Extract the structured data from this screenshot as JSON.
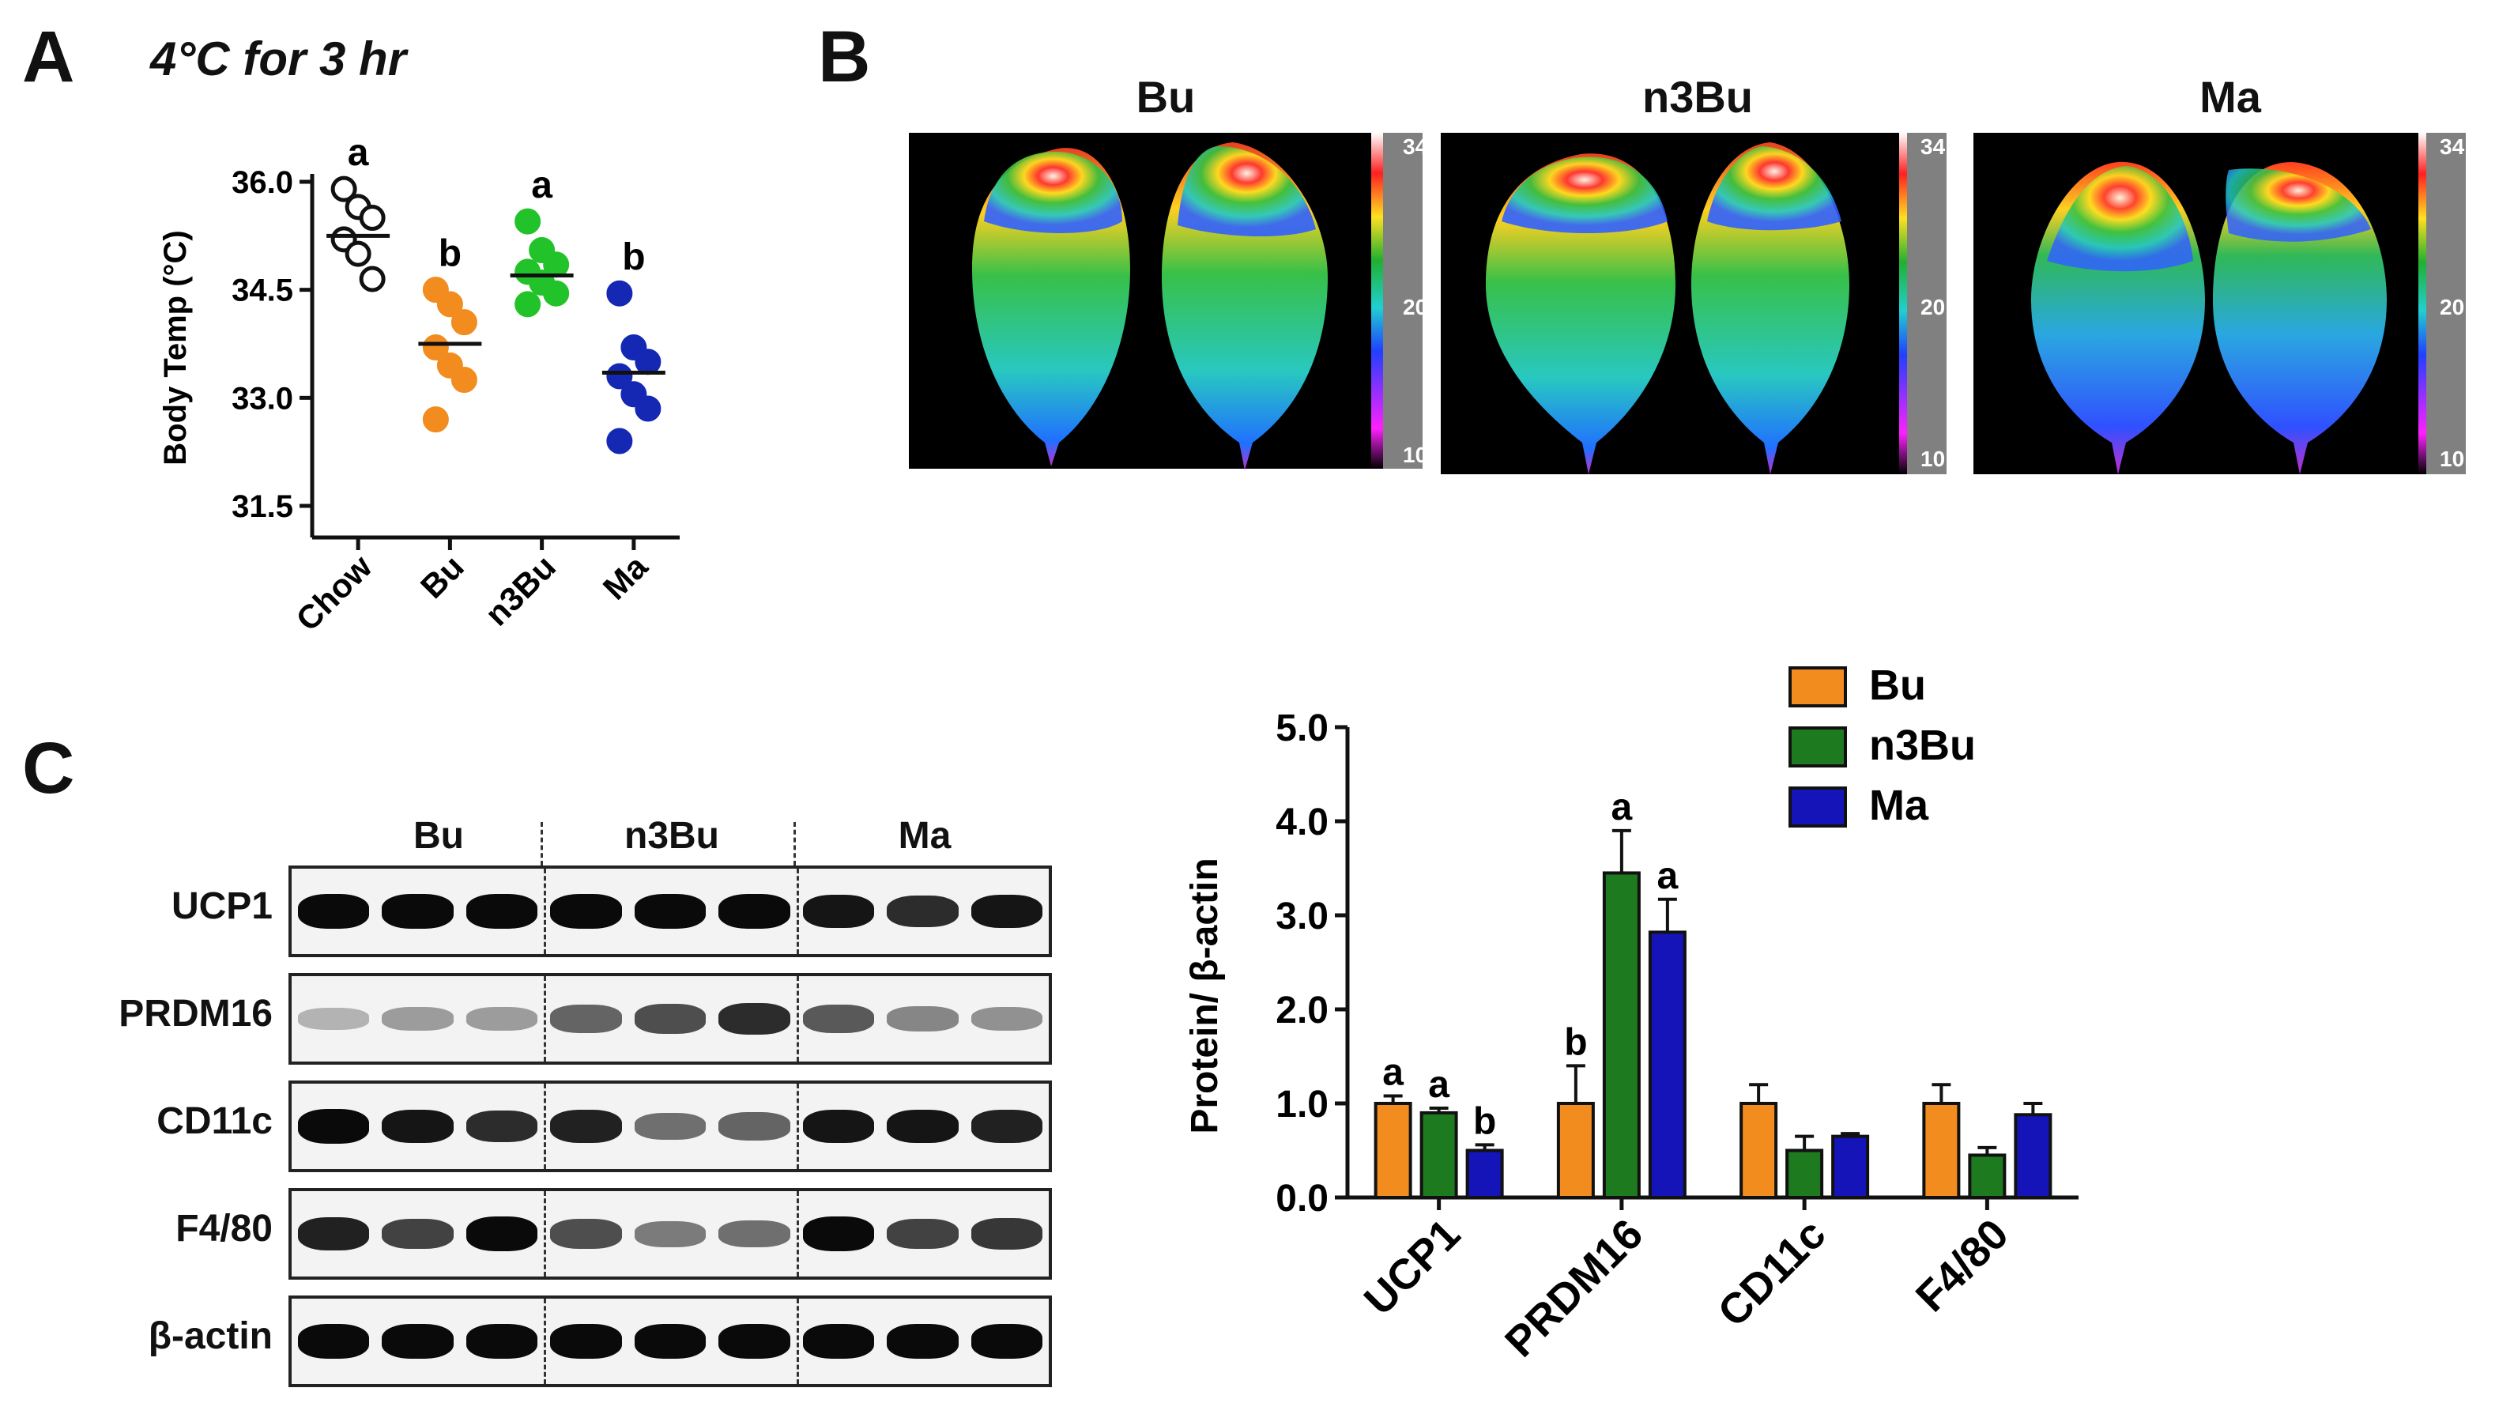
{
  "panelA": {
    "letter": "A",
    "condition": "4°C for 3 hr",
    "ylabel": "Body Temp (°C)",
    "yticks": [
      "31.5",
      "33.0",
      "34.5",
      "36.0"
    ],
    "groups": [
      {
        "name": "Chow",
        "mean": 35.25,
        "letter": "a",
        "color": "#ffffff",
        "points": [
          35.9,
          35.65,
          35.5,
          35.2,
          35.0,
          34.65
        ]
      },
      {
        "name": "Bu",
        "mean": 33.75,
        "letter": "b",
        "color": "#f28c1e",
        "points": [
          34.5,
          34.3,
          34.05,
          33.7,
          33.45,
          33.25,
          32.7
        ]
      },
      {
        "name": "n3Bu",
        "mean": 34.7,
        "letter": "a",
        "color": "#22c22a",
        "points": [
          35.45,
          35.05,
          34.85,
          34.75,
          34.6,
          34.45,
          34.3
        ]
      },
      {
        "name": "Ma",
        "mean": 33.35,
        "letter": "b",
        "color": "#1428b4",
        "points": [
          34.45,
          33.7,
          33.5,
          33.3,
          33.05,
          32.85,
          32.4
        ]
      }
    ]
  },
  "panelB": {
    "letter": "B",
    "images": [
      {
        "title": "Bu",
        "scale_max": "34",
        "scale_mid": "20",
        "scale_min": "10"
      },
      {
        "title": "n3Bu",
        "scale_max": "34",
        "scale_mid": "20",
        "scale_min": "10"
      },
      {
        "title": "Ma",
        "scale_max": "34",
        "scale_mid": "20",
        "scale_min": "10"
      }
    ]
  },
  "panelC": {
    "letter": "C",
    "blot_groups": [
      "Bu",
      "n3Bu",
      "Ma"
    ],
    "blot_rows": [
      "UCP1",
      "PRDM16",
      "CD11c",
      "F4/80",
      "β-actin"
    ],
    "band_intensity": [
      [
        1.0,
        1.0,
        1.0,
        1.0,
        1.0,
        1.0,
        0.95,
        0.85,
        0.95
      ],
      [
        0.25,
        0.35,
        0.35,
        0.6,
        0.7,
        0.85,
        0.65,
        0.45,
        0.4
      ],
      [
        1.0,
        0.95,
        0.85,
        0.9,
        0.55,
        0.6,
        0.95,
        0.95,
        0.9
      ],
      [
        0.9,
        0.75,
        1.0,
        0.7,
        0.5,
        0.55,
        1.0,
        0.75,
        0.8
      ],
      [
        1.0,
        1.0,
        1.0,
        1.0,
        1.0,
        1.0,
        1.0,
        1.0,
        1.0
      ]
    ]
  },
  "chart_data": {
    "type": "bar",
    "categories": [
      "UCP1",
      "PRDM16",
      "CD11c",
      "F4/80"
    ],
    "ylabel": "Protein/ β-actin",
    "yticks": [
      "0.0",
      "1.0",
      "2.0",
      "3.0",
      "4.0",
      "5.0"
    ],
    "ylim": [
      0,
      5
    ],
    "legend_position": "top-right",
    "series": [
      {
        "name": "Bu",
        "color": "#f28c1e",
        "values": [
          1.0,
          1.0,
          1.0,
          1.0
        ],
        "errors": [
          0.08,
          0.4,
          0.2,
          0.2
        ],
        "letters": [
          "a",
          "b",
          "",
          ""
        ]
      },
      {
        "name": "n3Bu",
        "color": "#1e7a1e",
        "values": [
          0.9,
          3.45,
          0.5,
          0.45
        ],
        "errors": [
          0.05,
          0.45,
          0.15,
          0.08
        ],
        "letters": [
          "a",
          "a",
          "",
          ""
        ]
      },
      {
        "name": "Ma",
        "color": "#1414b8",
        "values": [
          0.5,
          2.82,
          0.65,
          0.88
        ],
        "errors": [
          0.06,
          0.35,
          0.03,
          0.12
        ],
        "letters": [
          "b",
          "a",
          "",
          ""
        ]
      }
    ]
  }
}
